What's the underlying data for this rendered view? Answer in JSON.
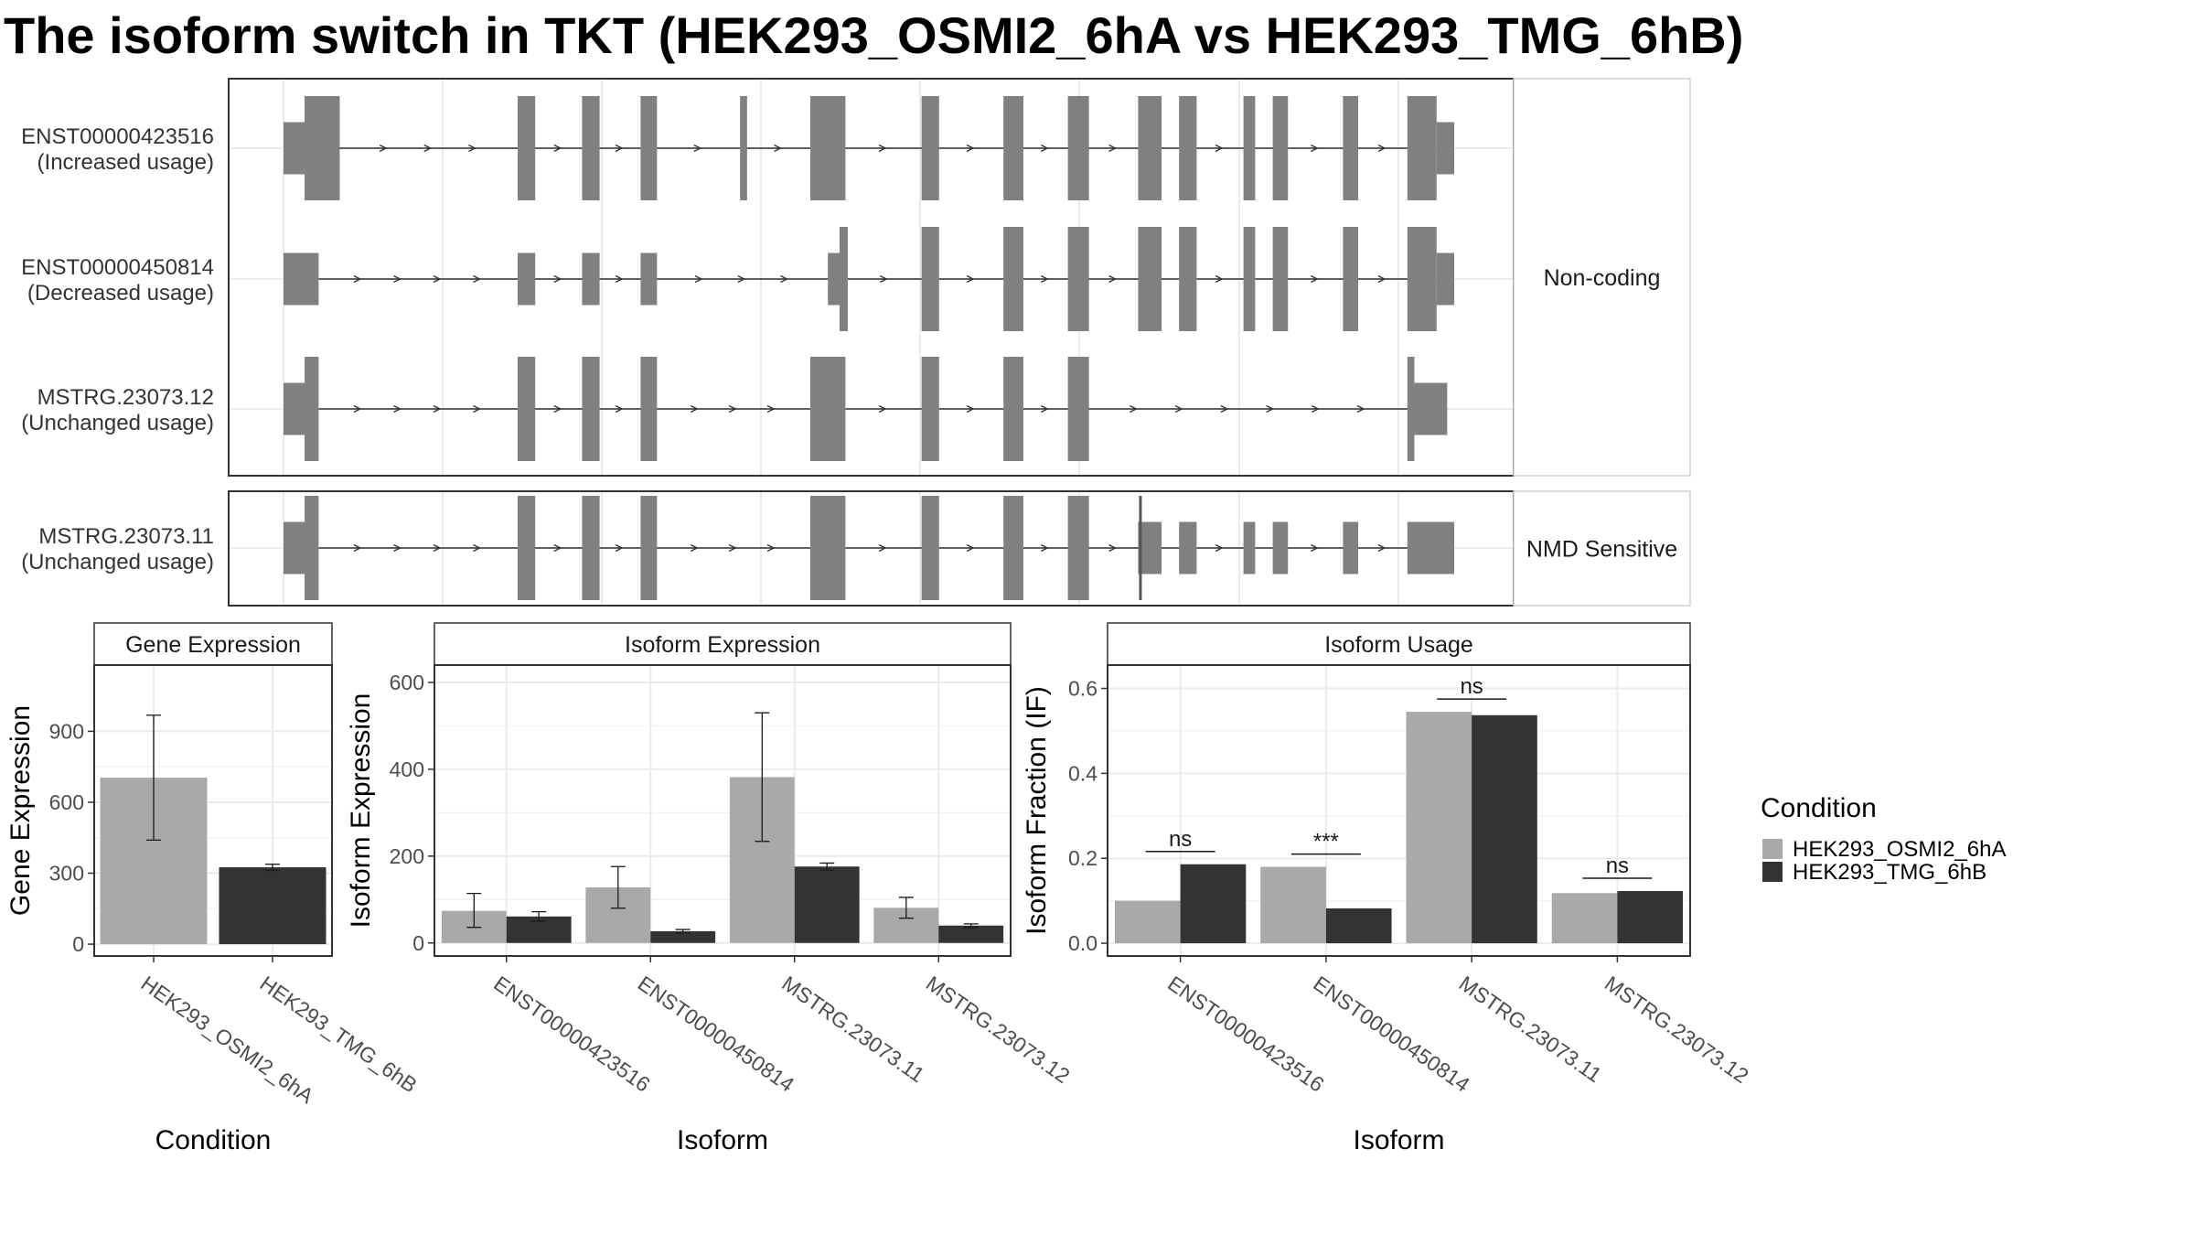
{
  "title": "The isoform switch in TKT (HEK293_OSMI2_6hA vs HEK293_TMG_6hB)",
  "colors": {
    "exon": "#808080",
    "condition_a": "#a9a9a9",
    "condition_b": "#333333",
    "grid": "#ebebeb",
    "panel_border": "#333333",
    "strip_fill": "#ffffff"
  },
  "chart_data": [
    {
      "type": "gene_structure",
      "facets": [
        {
          "label": "Non-coding",
          "transcripts": [
            {
              "name": "ENST00000423516",
              "status": "(Increased usage)",
              "coding_end": null,
              "exons": [
                [
                  0.0,
                  0.018
                ],
                [
                  0.018,
                  0.048
                ],
                [
                  0.2,
                  0.215
                ],
                [
                  0.255,
                  0.27
                ],
                [
                  0.305,
                  0.319
                ],
                [
                  0.39,
                  0.396
                ],
                [
                  0.45,
                  0.48
                ],
                [
                  0.545,
                  0.56
                ],
                [
                  0.615,
                  0.632
                ],
                [
                  0.67,
                  0.688
                ],
                [
                  0.73,
                  0.75
                ],
                [
                  0.765,
                  0.78
                ],
                [
                  0.82,
                  0.83
                ],
                [
                  0.845,
                  0.858
                ],
                [
                  0.905,
                  0.918
                ],
                [
                  0.96,
                  0.985
                ],
                [
                  0.985,
                  1.0
                ]
              ],
              "tall": [
                [
                  0.018,
                  0.048
                ],
                [
                  0.2,
                  0.215
                ],
                [
                  0.255,
                  0.27
                ],
                [
                  0.305,
                  0.319
                ],
                [
                  0.39,
                  0.396
                ],
                [
                  0.45,
                  0.48
                ],
                [
                  0.545,
                  0.56
                ],
                [
                  0.615,
                  0.632
                ],
                [
                  0.67,
                  0.688
                ],
                [
                  0.73,
                  0.75
                ],
                [
                  0.765,
                  0.78
                ],
                [
                  0.82,
                  0.83
                ],
                [
                  0.845,
                  0.858
                ],
                [
                  0.905,
                  0.918
                ],
                [
                  0.96,
                  0.985
                ]
              ]
            },
            {
              "name": "ENST00000450814",
              "status": "(Decreased usage)",
              "coding_end": null,
              "exons": [
                [
                  0.0,
                  0.03
                ],
                [
                  0.2,
                  0.215
                ],
                [
                  0.255,
                  0.27
                ],
                [
                  0.305,
                  0.319
                ],
                [
                  0.465,
                  0.475
                ],
                [
                  0.475,
                  0.482
                ],
                [
                  0.545,
                  0.56
                ],
                [
                  0.615,
                  0.632
                ],
                [
                  0.67,
                  0.688
                ],
                [
                  0.73,
                  0.75
                ],
                [
                  0.765,
                  0.78
                ],
                [
                  0.82,
                  0.83
                ],
                [
                  0.845,
                  0.858
                ],
                [
                  0.905,
                  0.918
                ],
                [
                  0.96,
                  0.985
                ],
                [
                  0.985,
                  1.0
                ]
              ],
              "tall": [
                [
                  0.475,
                  0.482
                ],
                [
                  0.545,
                  0.56
                ],
                [
                  0.615,
                  0.632
                ],
                [
                  0.67,
                  0.688
                ],
                [
                  0.73,
                  0.75
                ],
                [
                  0.765,
                  0.78
                ],
                [
                  0.82,
                  0.83
                ],
                [
                  0.845,
                  0.858
                ],
                [
                  0.905,
                  0.918
                ],
                [
                  0.96,
                  0.985
                ]
              ]
            },
            {
              "name": "MSTRG.23073.12",
              "status": "(Unchanged usage)",
              "coding_end": null,
              "exons": [
                [
                  0.0,
                  0.018
                ],
                [
                  0.018,
                  0.03
                ],
                [
                  0.2,
                  0.215
                ],
                [
                  0.255,
                  0.27
                ],
                [
                  0.305,
                  0.319
                ],
                [
                  0.45,
                  0.48
                ],
                [
                  0.545,
                  0.56
                ],
                [
                  0.615,
                  0.632
                ],
                [
                  0.67,
                  0.688
                ],
                [
                  0.96,
                  0.966
                ],
                [
                  0.966,
                  0.994
                ]
              ],
              "tall": [
                [
                  0.018,
                  0.03
                ],
                [
                  0.2,
                  0.215
                ],
                [
                  0.255,
                  0.27
                ],
                [
                  0.305,
                  0.319
                ],
                [
                  0.45,
                  0.48
                ],
                [
                  0.545,
                  0.56
                ],
                [
                  0.615,
                  0.632
                ],
                [
                  0.67,
                  0.688
                ],
                [
                  0.96,
                  0.966
                ]
              ]
            }
          ]
        },
        {
          "label": "NMD Sensitive",
          "transcripts": [
            {
              "name": "MSTRG.23073.11",
              "status": "(Unchanged usage)",
              "coding_end": 0.732,
              "exons": [
                [
                  0.0,
                  0.018
                ],
                [
                  0.018,
                  0.03
                ],
                [
                  0.2,
                  0.215
                ],
                [
                  0.255,
                  0.27
                ],
                [
                  0.305,
                  0.319
                ],
                [
                  0.45,
                  0.48
                ],
                [
                  0.545,
                  0.56
                ],
                [
                  0.615,
                  0.632
                ],
                [
                  0.67,
                  0.688
                ],
                [
                  0.73,
                  0.75
                ],
                [
                  0.765,
                  0.78
                ],
                [
                  0.82,
                  0.83
                ],
                [
                  0.845,
                  0.858
                ],
                [
                  0.905,
                  0.918
                ],
                [
                  0.96,
                  1.0
                ]
              ],
              "tall": [
                [
                  0.018,
                  0.03
                ],
                [
                  0.2,
                  0.215
                ],
                [
                  0.255,
                  0.27
                ],
                [
                  0.305,
                  0.319
                ],
                [
                  0.45,
                  0.48
                ],
                [
                  0.545,
                  0.56
                ],
                [
                  0.615,
                  0.632
                ],
                [
                  0.67,
                  0.688
                ],
                [
                  0.73,
                  0.732
                ]
              ]
            }
          ]
        }
      ]
    },
    {
      "type": "bar",
      "strip": "Gene Expression",
      "xlabel": "Condition",
      "ylabel": "Gene Expression",
      "categories": [
        "HEK293_OSMI2_6hA",
        "HEK293_TMG_6hB"
      ],
      "values": [
        704,
        325
      ],
      "errors": [
        [
          440,
          968
        ],
        [
          312,
          338
        ]
      ],
      "ylim": [
        -50,
        1180
      ],
      "yticks": [
        0,
        300,
        600,
        900
      ]
    },
    {
      "type": "bar",
      "strip": "Isoform Expression",
      "xlabel": "Isoform",
      "ylabel": "Isoform Expression",
      "categories": [
        "ENST00000423516",
        "ENST00000450814",
        "MSTRG.23073.11",
        "MSTRG.23073.12"
      ],
      "series": [
        {
          "name": "HEK293_OSMI2_6hA",
          "values": [
            74,
            128,
            382,
            81
          ],
          "errors": [
            [
              36,
              114
            ],
            [
              80,
              176
            ],
            [
              234,
              530
            ],
            [
              57,
              105
            ]
          ]
        },
        {
          "name": "HEK293_TMG_6hB",
          "values": [
            61,
            27,
            176,
            40
          ],
          "errors": [
            [
              50,
              72
            ],
            [
              23,
              31
            ],
            [
              168,
              184
            ],
            [
              36,
              44
            ]
          ]
        }
      ],
      "ylim": [
        -30,
        640
      ],
      "yticks": [
        0,
        200,
        400,
        600
      ]
    },
    {
      "type": "bar",
      "strip": "Isoform Usage",
      "xlabel": "Isoform",
      "ylabel": "Isoform Fraction (IF)",
      "categories": [
        "ENST00000423516",
        "ENST00000450814",
        "MSTRG.23073.11",
        "MSTRG.23073.12"
      ],
      "series": [
        {
          "name": "HEK293_OSMI2_6hA",
          "values": [
            0.1,
            0.18,
            0.545,
            0.118
          ]
        },
        {
          "name": "HEK293_TMG_6hB",
          "values": [
            0.186,
            0.082,
            0.537,
            0.123
          ]
        }
      ],
      "significance": [
        {
          "label": "ns",
          "y": 0.216
        },
        {
          "label": "***",
          "y": 0.21
        },
        {
          "label": "ns",
          "y": 0.575
        },
        {
          "label": "ns",
          "y": 0.153
        }
      ],
      "ylim": [
        -0.03,
        0.655
      ],
      "yticks": [
        0.0,
        0.2,
        0.4,
        0.6
      ],
      "yticklabels": [
        "0.0",
        "0.2",
        "0.4",
        "0.6"
      ]
    }
  ],
  "legend": {
    "title": "Condition",
    "entries": [
      "HEK293_OSMI2_6hA",
      "HEK293_TMG_6hB"
    ]
  }
}
